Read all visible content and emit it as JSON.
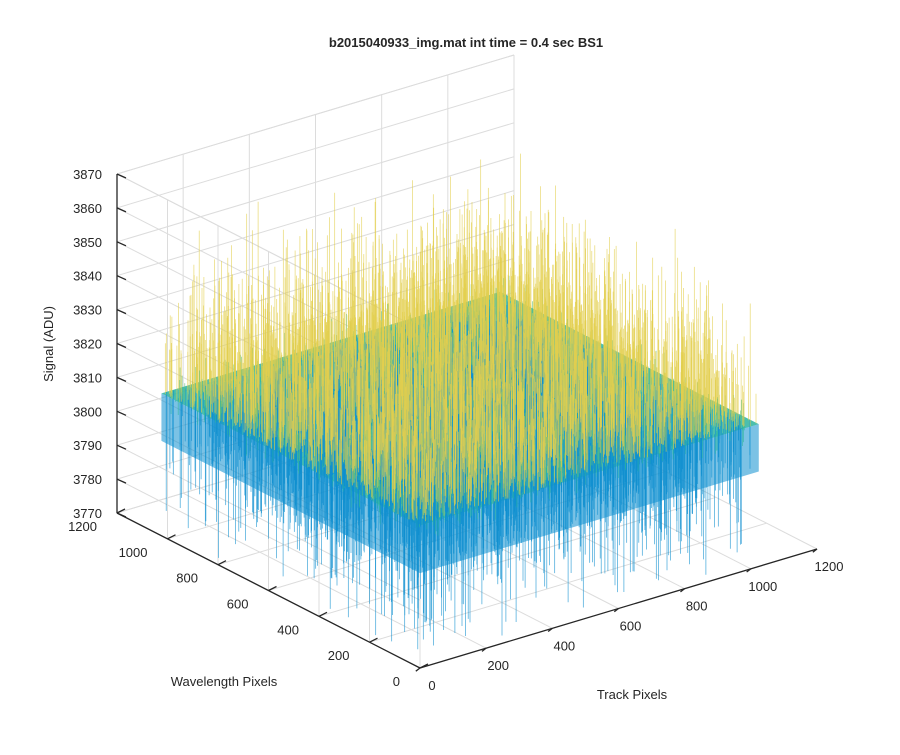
{
  "chart_data": {
    "type": "surface",
    "title": "b2015040933_img.mat int time = 0.4 sec   BS1",
    "xlabel": "Track Pixels",
    "ylabel": "Wavelength Pixels",
    "zlabel": "Signal (ADU)",
    "xlim": [
      0,
      1200
    ],
    "ylim": [
      0,
      1200
    ],
    "zlim": [
      3770,
      3870
    ],
    "xticks": [
      0,
      200,
      400,
      600,
      800,
      1000,
      1200
    ],
    "yticks": [
      0,
      200,
      400,
      600,
      800,
      1000,
      1200
    ],
    "zticks": [
      3770,
      3780,
      3790,
      3800,
      3810,
      3820,
      3830,
      3840,
      3850,
      3860,
      3870
    ],
    "x_data_range": [
      0,
      1024
    ],
    "y_data_range": [
      0,
      1024
    ],
    "signal_mean": 3812,
    "signal_spread": [
      3782,
      3862
    ],
    "grid": true,
    "colormap": "parula",
    "colors": {
      "surface_low": "#0f8fd0",
      "surface_mid": "#2bb4a0",
      "surface_high": "#e3cf4e",
      "grid": "#dcdcdc",
      "axis": "#262626"
    }
  }
}
